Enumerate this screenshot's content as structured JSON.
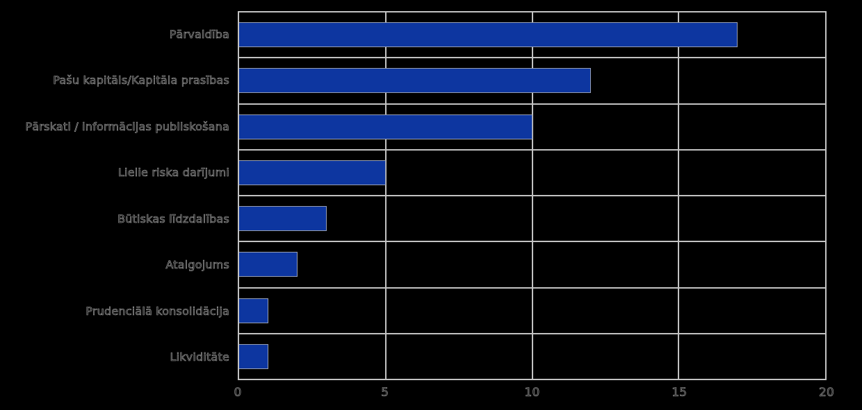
{
  "chart_data": {
    "type": "bar",
    "orientation": "horizontal",
    "title": "",
    "xlabel": "",
    "ylabel": "",
    "categories": [
      "Pārvaldība",
      "Pašu kapitāls/Kapitāla prasības",
      "Pārskati / informācijas publiskošana",
      "Lielie riska darījumi",
      "Būtiskas līdzdalības",
      "Atalgojums",
      "Prudenciālā konsolidācija",
      "Likviditāte"
    ],
    "values": [
      17,
      12,
      10,
      5,
      3,
      2,
      1,
      1
    ],
    "x_ticks": [
      0,
      5,
      10,
      15,
      20
    ],
    "x_tick_labels": [
      "0",
      "5",
      "10",
      "15",
      "20"
    ],
    "xlim": [
      0,
      20
    ],
    "grid": true,
    "legend": false,
    "bar_color": "#0d36a0",
    "background_color": "#000000",
    "gridline_color": "#c3c3c3",
    "text_color_apparent": "#a9a9a9"
  }
}
